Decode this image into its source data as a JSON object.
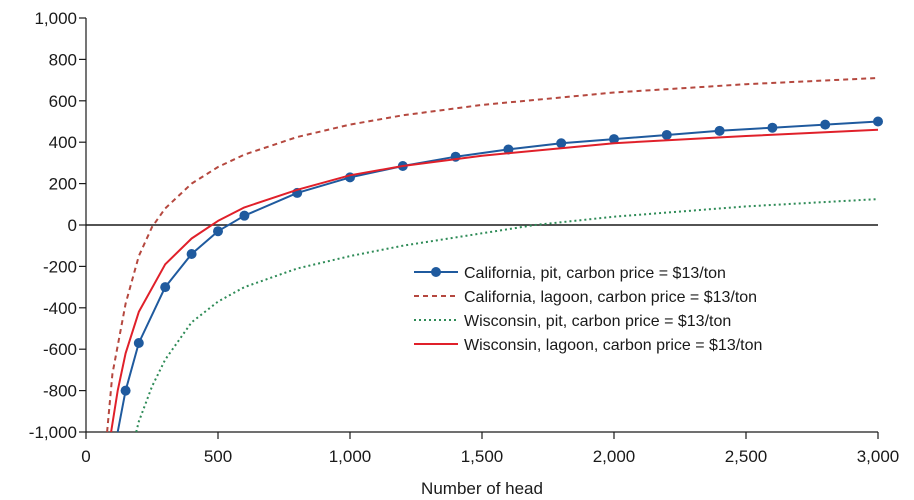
{
  "chart_data": {
    "type": "line",
    "xlabel": "Number of head",
    "ylabel": "",
    "xlim": [
      0,
      3000
    ],
    "ylim": [
      -1000,
      1000
    ],
    "xticks": [
      0,
      500,
      1000,
      1500,
      2000,
      2500,
      3000
    ],
    "yticks": [
      -1000,
      -800,
      -600,
      -400,
      -200,
      0,
      200,
      400,
      600,
      800,
      1000
    ],
    "xtick_labels": [
      "0",
      "500",
      "1,000",
      "1,500",
      "2,000",
      "2,500",
      "3,000"
    ],
    "ytick_labels": [
      "-1,000",
      "-800",
      "-600",
      "-400",
      "-200",
      "0",
      "200",
      "400",
      "600",
      "800",
      "1,000"
    ],
    "grid": false,
    "zero_line": true,
    "legend_position": "lower-right",
    "series": [
      {
        "name": "California, pit, carbon price = $13/ton",
        "color": "#1f5a9e",
        "dash": "solid",
        "marker": "circle",
        "x": [
          120,
          150,
          200,
          300,
          400,
          500,
          600,
          800,
          1000,
          1200,
          1400,
          1600,
          1800,
          2000,
          2200,
          2400,
          2600,
          2800,
          3000
        ],
        "y": [
          -1000,
          -800,
          -570,
          -300,
          -140,
          -30,
          45,
          155,
          230,
          285,
          330,
          365,
          395,
          415,
          435,
          455,
          470,
          485,
          500
        ]
      },
      {
        "name": "California, lagoon, carbon price = $13/ton",
        "color": "#b5483f",
        "dash": "dashed",
        "marker": "none",
        "x": [
          80,
          100,
          150,
          200,
          250,
          300,
          400,
          500,
          600,
          800,
          1000,
          1200,
          1500,
          2000,
          2500,
          3000
        ],
        "y": [
          -1000,
          -720,
          -380,
          -150,
          -10,
          80,
          200,
          280,
          340,
          425,
          485,
          530,
          580,
          640,
          680,
          710
        ]
      },
      {
        "name": "Wisconsin, pit, carbon price = $13/ton",
        "color": "#2e8b57",
        "dash": "dotted",
        "marker": "none",
        "x": [
          190,
          200,
          250,
          300,
          400,
          500,
          600,
          800,
          1000,
          1200,
          1500,
          1700,
          2000,
          2500,
          3000
        ],
        "y": [
          -1000,
          -950,
          -780,
          -650,
          -470,
          -370,
          -300,
          -210,
          -150,
          -100,
          -40,
          0,
          40,
          90,
          125
        ]
      },
      {
        "name": "Wisconsin, lagoon, carbon price = $13/ton",
        "color": "#e0202a",
        "dash": "solid",
        "marker": "none",
        "x": [
          95,
          120,
          150,
          200,
          300,
          400,
          500,
          600,
          800,
          1000,
          1200,
          1500,
          2000,
          2500,
          3000
        ],
        "y": [
          -1000,
          -800,
          -620,
          -420,
          -190,
          -65,
          20,
          85,
          170,
          240,
          285,
          335,
          395,
          430,
          460
        ]
      }
    ]
  }
}
